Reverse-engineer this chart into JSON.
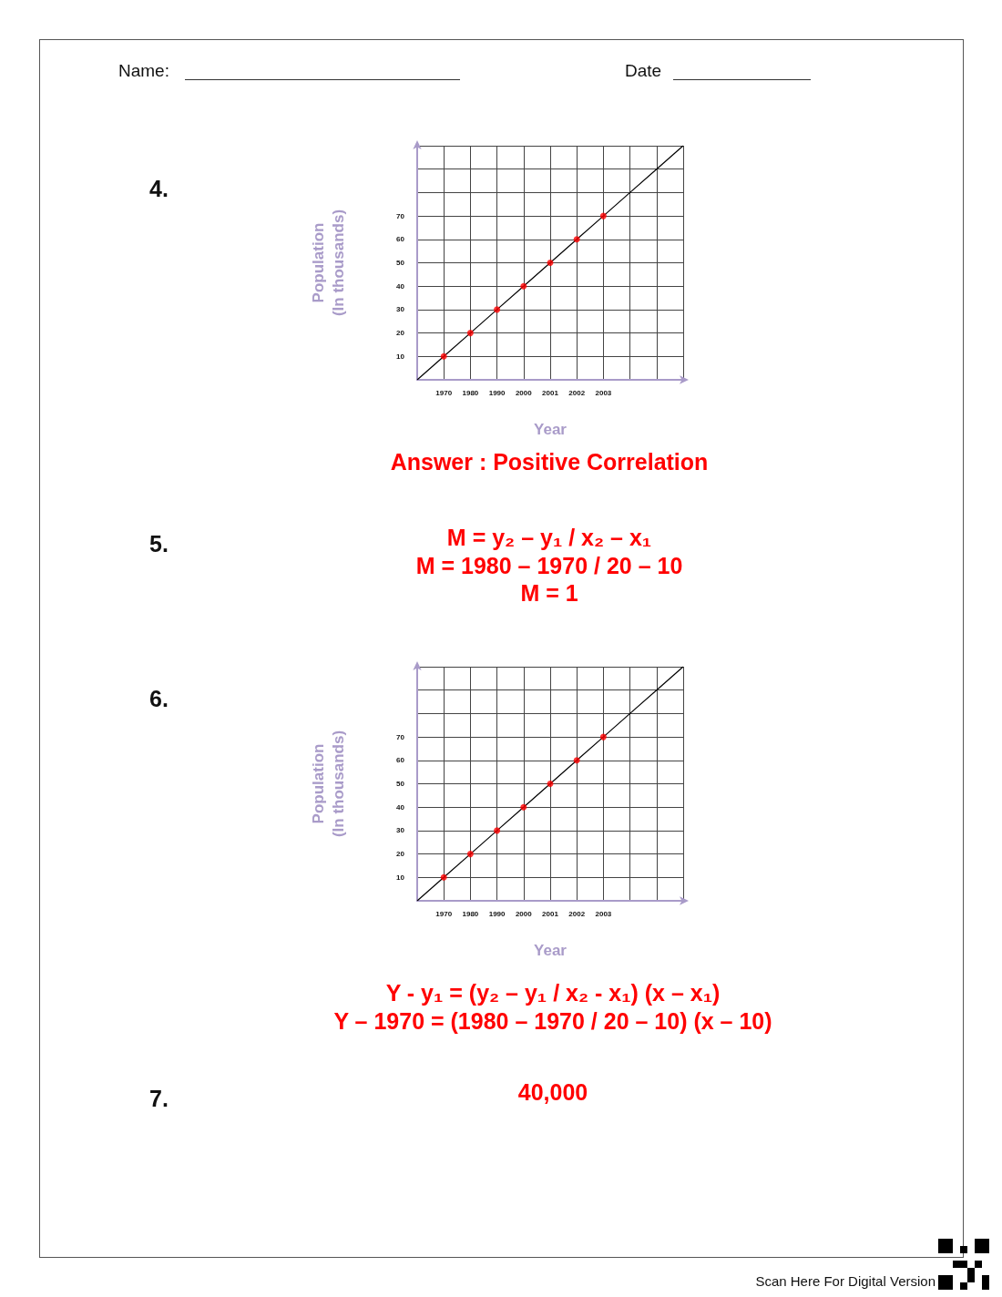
{
  "chart_data": [
    {
      "type": "scatter",
      "xlabel": "Year",
      "ylabel": "Population\n(In thousands)",
      "categories": [
        null,
        "1970",
        "1980",
        "1990",
        "2000",
        "2001",
        "2002",
        "2003",
        null,
        null,
        null
      ],
      "series": [
        {
          "type": "line",
          "color": "#000000",
          "marker": "none",
          "values": [
            0,
            10,
            20,
            30,
            40,
            50,
            60,
            70,
            80,
            90,
            100
          ]
        },
        {
          "color": "#ff0000",
          "marker": "circle",
          "values": [
            null,
            10,
            20,
            30,
            40,
            50,
            60,
            70,
            null,
            null,
            null
          ]
        }
      ],
      "ylim": [
        0,
        100
      ],
      "yticks": [
        {
          "value": 0,
          "label": null
        },
        10,
        20,
        30,
        40,
        50,
        60,
        70,
        {
          "value": 80,
          "label": null
        },
        {
          "value": 90,
          "label": null
        },
        {
          "value": 100,
          "label": null
        }
      ],
      "grid": true,
      "annotations": [
        "Name:",
        "Date",
        "4.",
        "Answer : Positive Correlation",
        "5.",
        "M = y₂ – y₁ / x₂ – x₁",
        "M = 1980 – 1970 / 20 – 10",
        "M = 1"
      ]
    },
    {
      "type": "scatter",
      "xlabel": "Year",
      "ylabel": "Population\n(In thousands)",
      "categories": [
        null,
        "1970",
        "1980",
        "1990",
        "2000",
        "2001",
        "2002",
        "2003",
        null,
        null,
        null
      ],
      "series": [
        {
          "type": "line",
          "color": "#000000",
          "marker": "none",
          "values": [
            0,
            10,
            20,
            30,
            40,
            50,
            60,
            70,
            80,
            90,
            100
          ]
        },
        {
          "color": "#ff0000",
          "marker": "circle",
          "values": [
            null,
            10,
            20,
            30,
            40,
            50,
            60,
            70,
            null,
            null,
            null
          ]
        }
      ],
      "ylim": [
        0,
        100
      ],
      "yticks": [
        {
          "value": 0,
          "label": null
        },
        10,
        20,
        30,
        40,
        50,
        60,
        70,
        {
          "value": 80,
          "label": null
        },
        {
          "value": 90,
          "label": null
        },
        {
          "value": 100,
          "label": null
        }
      ],
      "grid": true,
      "annotations": [
        "6.",
        "Y - y₁ = (y₂ – y₁ / x₂ - x₁) (x – x₁)",
        "Y – 1970 = (1980 – 1970 / 20 – 10) (x – 10)",
        "7.",
        "40,000",
        "Scan Here For Digital Version"
      ]
    }
  ]
}
